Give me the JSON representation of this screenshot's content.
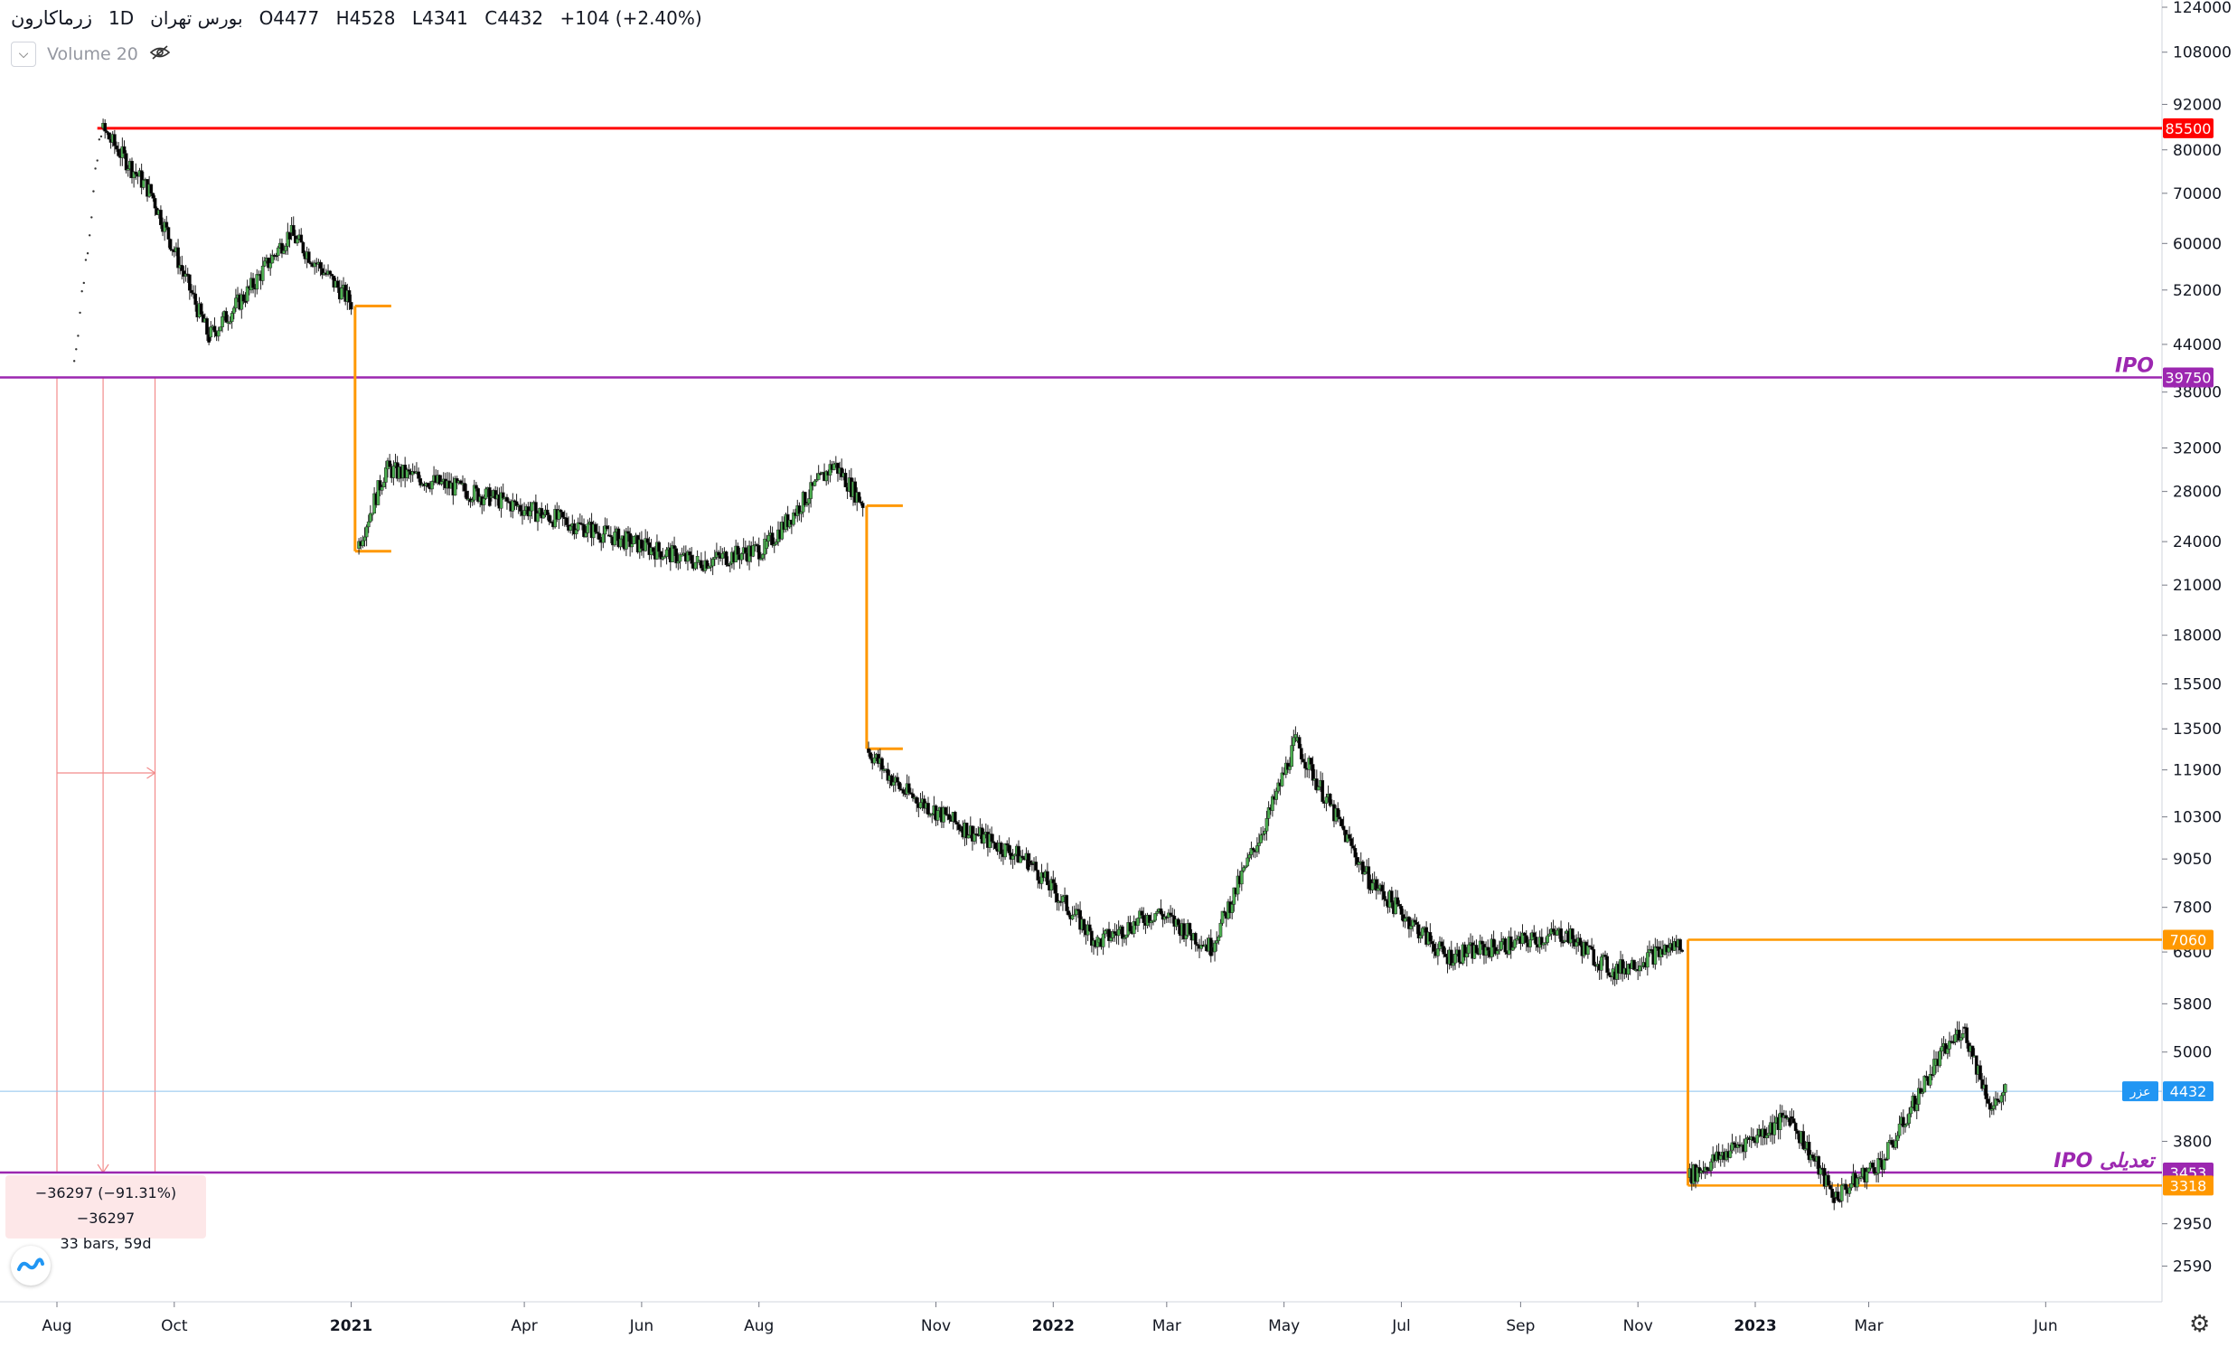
{
  "header": {
    "symbol": "زرماکارون",
    "interval": "1D",
    "exchange": "بورس تهران",
    "open": "O4477",
    "high": "H4528",
    "low": "L4341",
    "close": "C4432",
    "change": "+104 (+2.40%)"
  },
  "volume_indicator": {
    "label": "Volume 20"
  },
  "measure_box": {
    "line1": "−36297 (−91.31%) −36297",
    "line2": "33 bars, 59d"
  },
  "icons": [
    "chevron-down-icon",
    "eye-off-icon",
    "tradingview-logo-icon",
    "settings-gear-icon"
  ],
  "colors": {
    "red_line": "#ff0000",
    "ipo_line": "#9c27b0",
    "orange": "#ff9800",
    "candle_up": "#4caf50",
    "candle_down": "#000000",
    "price_line": "#2196f3"
  },
  "chart_data": {
    "type": "candlestick",
    "y_scale": "log",
    "y_ticks": [
      124000,
      108000,
      92000,
      80000,
      70000,
      60000,
      52000,
      44000,
      38000,
      32000,
      28000,
      24000,
      21000,
      18000,
      15500,
      13500,
      11900,
      10300,
      9050,
      7800,
      6800,
      5800,
      5000,
      3800,
      2950,
      2590
    ],
    "x_ticks": [
      "Aug",
      "Oct",
      "2021",
      "Apr",
      "Jun",
      "Aug",
      "Nov",
      "2022",
      "Mar",
      "May",
      "Jul",
      "Sep",
      "Nov",
      "2023",
      "Mar",
      "Jun"
    ],
    "series": [
      {
        "date": "2020-08-10",
        "close": 39750
      },
      {
        "date": "2020-08-25",
        "close": 85500
      },
      {
        "date": "2020-09-20",
        "close": 70000
      },
      {
        "date": "2020-10-20",
        "close": 45000
      },
      {
        "date": "2020-11-10",
        "close": 52000
      },
      {
        "date": "2020-12-01",
        "close": 62000
      },
      {
        "date": "2021-01-02",
        "close": 50000
      },
      {
        "date": "2021-01-05",
        "close": 23500
      },
      {
        "date": "2021-01-20",
        "close": 30000
      },
      {
        "date": "2021-03-15",
        "close": 27500
      },
      {
        "date": "2021-05-15",
        "close": 24500
      },
      {
        "date": "2021-07-01",
        "close": 22500
      },
      {
        "date": "2021-08-05",
        "close": 23500
      },
      {
        "date": "2021-09-10",
        "close": 30500
      },
      {
        "date": "2021-09-25",
        "close": 27000
      },
      {
        "date": "2021-09-27",
        "close": 12700
      },
      {
        "date": "2021-10-15",
        "close": 11200
      },
      {
        "date": "2021-11-15",
        "close": 10000
      },
      {
        "date": "2021-12-20",
        "close": 9000
      },
      {
        "date": "2022-01-25",
        "close": 7000
      },
      {
        "date": "2022-02-25",
        "close": 7700
      },
      {
        "date": "2022-03-25",
        "close": 6900
      },
      {
        "date": "2022-04-25",
        "close": 10500
      },
      {
        "date": "2022-05-08",
        "close": 13000
      },
      {
        "date": "2022-06-15",
        "close": 8500
      },
      {
        "date": "2022-07-25",
        "close": 6700
      },
      {
        "date": "2022-09-25",
        "close": 7200
      },
      {
        "date": "2022-10-20",
        "close": 6400
      },
      {
        "date": "2022-11-25",
        "close": 7000
      },
      {
        "date": "2022-11-28",
        "close": 3400
      },
      {
        "date": "2022-12-20",
        "close": 3700
      },
      {
        "date": "2023-01-20",
        "close": 4100
      },
      {
        "date": "2023-02-12",
        "close": 3200
      },
      {
        "date": "2023-03-10",
        "close": 3600
      },
      {
        "date": "2023-04-05",
        "close": 4800
      },
      {
        "date": "2023-04-20",
        "close": 5400
      },
      {
        "date": "2023-05-05",
        "close": 4200
      },
      {
        "date": "2023-05-12",
        "close": 4432
      }
    ],
    "horizontal_lines": [
      {
        "price": 85500,
        "label": "85500",
        "color": "#ff0000"
      },
      {
        "price": 39750,
        "label": "39750",
        "color": "#9c27b0",
        "text": "IPO"
      },
      {
        "price": 3453,
        "label": "3453",
        "color": "#9c27b0",
        "text": "IPO تعدیلی"
      },
      {
        "price": 7060,
        "label": "7060",
        "color": "#ff9800"
      },
      {
        "price": 3318,
        "label": "3318",
        "color": "#ff9800"
      }
    ],
    "current_price": {
      "price": 4432,
      "label": "4432",
      "tag": "عزر"
    },
    "gaps": [
      {
        "from_date": "2021-01-03",
        "from": 49500,
        "to": 23300
      },
      {
        "from_date": "2021-09-26",
        "from": 26800,
        "to": 12700
      },
      {
        "from_date": "2022-11-27",
        "from": 7060,
        "to": 3318
      }
    ]
  }
}
